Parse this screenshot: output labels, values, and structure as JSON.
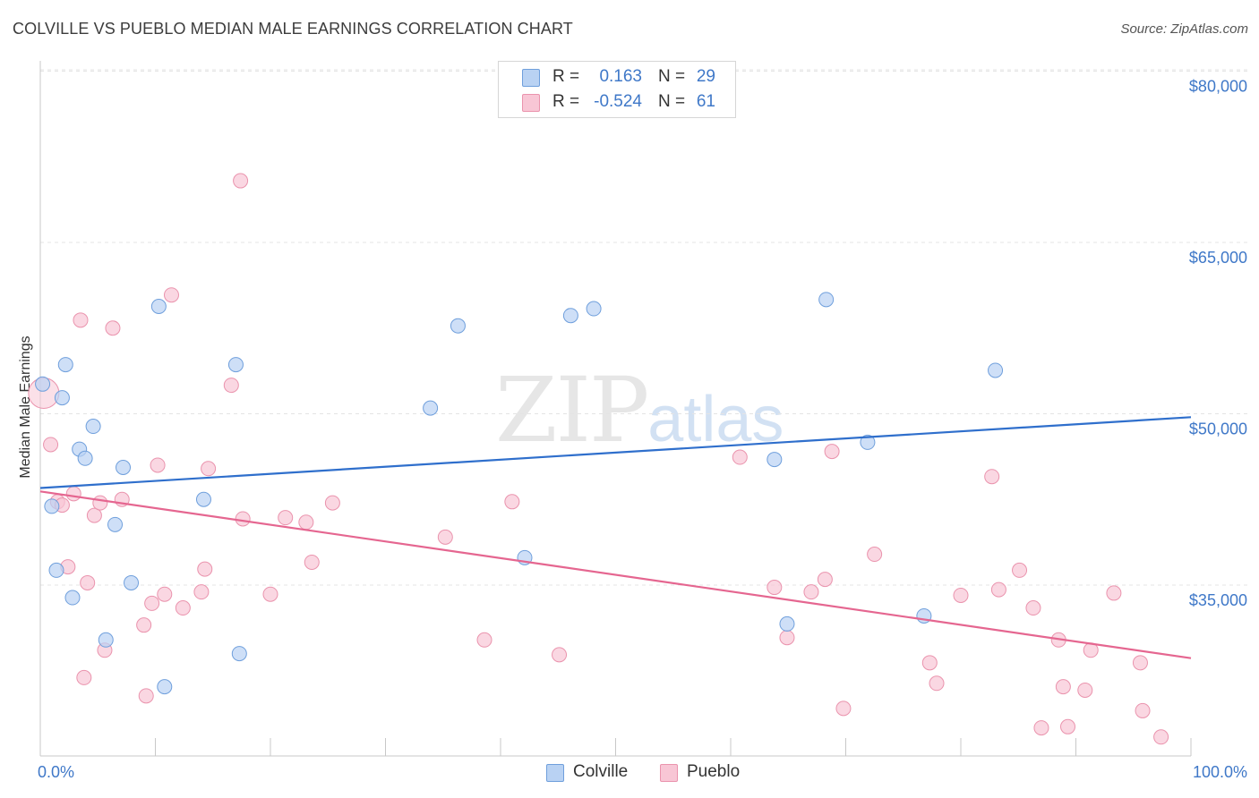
{
  "title": "COLVILLE VS PUEBLO MEDIAN MALE EARNINGS CORRELATION CHART",
  "source": "Source: ZipAtlas.com",
  "watermark": {
    "zip": "ZIP",
    "atlas": "atlas"
  },
  "colors": {
    "colville_fill": "#b9d2f3",
    "colville_stroke": "#6f9fdc",
    "colville_line": "#2f6fcc",
    "pueblo_fill": "#f8c6d5",
    "pueblo_stroke": "#ea93ad",
    "pueblo_line": "#e56690",
    "tick_text": "#3f78c8",
    "grid": "#e4e4e4"
  },
  "legend": {
    "rows": [
      {
        "r_label": "R =",
        "r_value": "0.163",
        "n_label": "N =",
        "n_value": "29"
      },
      {
        "r_label": "R =",
        "r_value": "-0.524",
        "n_label": "N =",
        "n_value": "61"
      }
    ]
  },
  "bottom_legend": [
    "Colville",
    "Pueblo"
  ],
  "chart_data": {
    "type": "scatter",
    "xlabel": "",
    "ylabel": "Median Male Earnings",
    "x_tick_labels": [
      "0.0%",
      "100.0%"
    ],
    "y_tick_labels": [
      "$35,000",
      "$50,000",
      "$65,000",
      "$80,000"
    ],
    "y_ticks": [
      35000,
      50000,
      65000,
      80000
    ],
    "xlim": [
      0,
      100
    ],
    "ylim": [
      20000,
      81000
    ],
    "grid": true,
    "series": [
      {
        "name": "Colville",
        "points": [
          [
            0.2,
            52600
          ],
          [
            1.0,
            41900
          ],
          [
            1.4,
            36300
          ],
          [
            1.9,
            51400
          ],
          [
            2.2,
            54300
          ],
          [
            2.8,
            33900
          ],
          [
            3.4,
            46900
          ],
          [
            3.9,
            46100
          ],
          [
            4.6,
            48900
          ],
          [
            5.7,
            30200
          ],
          [
            6.5,
            40300
          ],
          [
            7.2,
            45300
          ],
          [
            7.9,
            35200
          ],
          [
            10.3,
            59400
          ],
          [
            10.8,
            26100
          ],
          [
            14.2,
            42500
          ],
          [
            17.0,
            54300
          ],
          [
            17.3,
            29000
          ],
          [
            33.9,
            50500
          ],
          [
            36.3,
            57700
          ],
          [
            42.1,
            37400
          ],
          [
            46.1,
            58600
          ],
          [
            48.1,
            59200
          ],
          [
            63.8,
            46000
          ],
          [
            64.9,
            31600
          ],
          [
            68.3,
            60000
          ],
          [
            71.9,
            47500
          ],
          [
            76.8,
            32300
          ],
          [
            83.0,
            53800
          ]
        ],
        "trend": {
          "x": [
            0,
            100
          ],
          "y": [
            43500,
            49700
          ]
        }
      },
      {
        "name": "Pueblo",
        "points": [
          [
            0.3,
            51800
          ],
          [
            0.9,
            47300
          ],
          [
            1.5,
            42300
          ],
          [
            1.9,
            42000
          ],
          [
            2.4,
            36600
          ],
          [
            2.9,
            43000
          ],
          [
            3.5,
            58200
          ],
          [
            3.8,
            26900
          ],
          [
            4.1,
            35200
          ],
          [
            4.7,
            41100
          ],
          [
            5.2,
            42200
          ],
          [
            5.6,
            29300
          ],
          [
            6.3,
            57500
          ],
          [
            7.1,
            42500
          ],
          [
            9.0,
            31500
          ],
          [
            9.2,
            25300
          ],
          [
            9.7,
            33400
          ],
          [
            10.2,
            45500
          ],
          [
            10.8,
            34200
          ],
          [
            11.4,
            60400
          ],
          [
            12.4,
            33000
          ],
          [
            14.0,
            34400
          ],
          [
            14.3,
            36400
          ],
          [
            14.6,
            45200
          ],
          [
            16.6,
            52500
          ],
          [
            17.4,
            70400
          ],
          [
            17.6,
            40800
          ],
          [
            20.0,
            34200
          ],
          [
            21.3,
            40900
          ],
          [
            23.1,
            40500
          ],
          [
            23.6,
            37000
          ],
          [
            25.4,
            42200
          ],
          [
            35.2,
            39200
          ],
          [
            38.6,
            30200
          ],
          [
            41.0,
            42300
          ],
          [
            45.1,
            28900
          ],
          [
            60.8,
            46200
          ],
          [
            63.8,
            34800
          ],
          [
            64.9,
            30400
          ],
          [
            67.0,
            34400
          ],
          [
            68.2,
            35500
          ],
          [
            68.8,
            46700
          ],
          [
            69.8,
            24200
          ],
          [
            72.5,
            37700
          ],
          [
            77.3,
            28200
          ],
          [
            77.9,
            26400
          ],
          [
            80.0,
            34100
          ],
          [
            82.7,
            44500
          ],
          [
            83.3,
            34600
          ],
          [
            85.1,
            36300
          ],
          [
            86.3,
            33000
          ],
          [
            87.0,
            22500
          ],
          [
            88.5,
            30200
          ],
          [
            88.9,
            26100
          ],
          [
            89.3,
            22600
          ],
          [
            90.8,
            25800
          ],
          [
            91.3,
            29300
          ],
          [
            93.3,
            34300
          ],
          [
            95.6,
            28200
          ],
          [
            95.8,
            24000
          ],
          [
            97.4,
            21700
          ]
        ],
        "trend": {
          "x": [
            0,
            100
          ],
          "y": [
            43200,
            28600
          ]
        }
      }
    ]
  }
}
